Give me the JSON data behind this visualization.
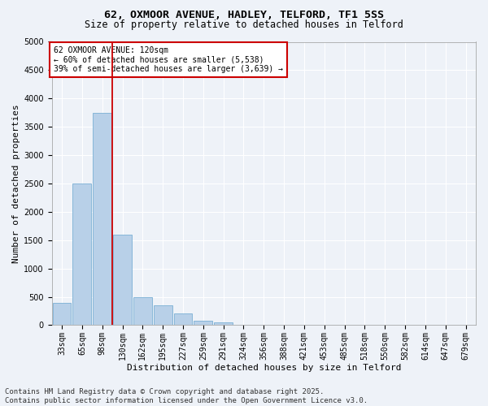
{
  "title_line1": "62, OXMOOR AVENUE, HADLEY, TELFORD, TF1 5SS",
  "title_line2": "Size of property relative to detached houses in Telford",
  "xlabel": "Distribution of detached houses by size in Telford",
  "ylabel": "Number of detached properties",
  "categories": [
    "33sqm",
    "65sqm",
    "98sqm",
    "130sqm",
    "162sqm",
    "195sqm",
    "227sqm",
    "259sqm",
    "291sqm",
    "324sqm",
    "356sqm",
    "388sqm",
    "421sqm",
    "453sqm",
    "485sqm",
    "518sqm",
    "550sqm",
    "582sqm",
    "614sqm",
    "647sqm",
    "679sqm"
  ],
  "values": [
    390,
    2500,
    3750,
    1600,
    500,
    350,
    200,
    80,
    50,
    0,
    0,
    0,
    0,
    0,
    0,
    0,
    0,
    0,
    0,
    0,
    0
  ],
  "bar_color": "#b8d0e8",
  "bar_edge_color": "#7aafd4",
  "vline_color": "#cc0000",
  "annotation_text": "62 OXMOOR AVENUE: 120sqm\n← 60% of detached houses are smaller (5,538)\n39% of semi-detached houses are larger (3,639) →",
  "annotation_box_color": "#ffffff",
  "annotation_box_edge_color": "#cc0000",
  "ylim": [
    0,
    5000
  ],
  "yticks": [
    0,
    500,
    1000,
    1500,
    2000,
    2500,
    3000,
    3500,
    4000,
    4500,
    5000
  ],
  "footer_line1": "Contains HM Land Registry data © Crown copyright and database right 2025.",
  "footer_line2": "Contains public sector information licensed under the Open Government Licence v3.0.",
  "background_color": "#eef2f8",
  "plot_bg_color": "#eef2f8",
  "grid_color": "#ffffff",
  "title_fontsize": 9.5,
  "subtitle_fontsize": 8.5,
  "axis_label_fontsize": 8,
  "tick_fontsize": 7,
  "annotation_fontsize": 7,
  "footer_fontsize": 6.5
}
